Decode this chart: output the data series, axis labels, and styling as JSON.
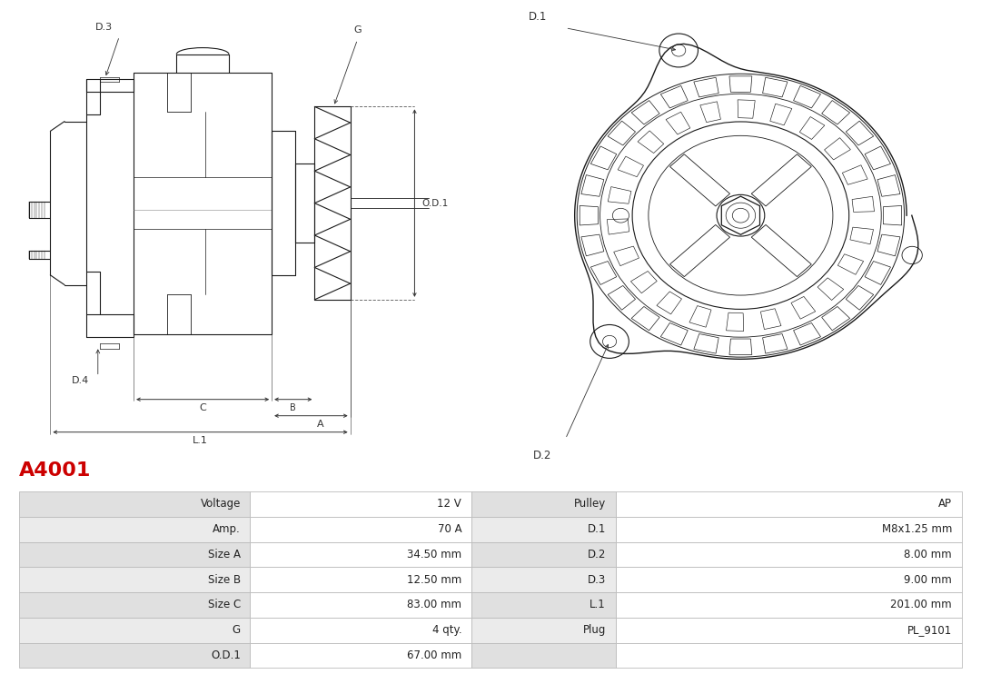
{
  "title": "A4001",
  "title_color": "#cc0000",
  "bg_color": "#ffffff",
  "line_color": "#1a1a1a",
  "dim_color": "#333333",
  "table": {
    "col1_labels": [
      "Voltage",
      "Amp.",
      "Size A",
      "Size B",
      "Size C",
      "G",
      "O.D.1"
    ],
    "col1_values": [
      "12 V",
      "70 A",
      "34.50 mm",
      "12.50 mm",
      "83.00 mm",
      "4 qty.",
      "67.00 mm"
    ],
    "col2_labels": [
      "Pulley",
      "D.1",
      "D.2",
      "D.3",
      "L.1",
      "Plug",
      ""
    ],
    "col2_values": [
      "AP",
      "M8x1.25 mm",
      "8.00 mm",
      "9.00 mm",
      "201.00 mm",
      "PL_9101",
      ""
    ],
    "row_bg_odd": "#e0e0e0",
    "row_bg_even": "#ebebeb",
    "cell_bg_white": "#ffffff",
    "border_color": "#bbbbbb",
    "text_color": "#222222",
    "header_bg": "#d0d0d0"
  }
}
